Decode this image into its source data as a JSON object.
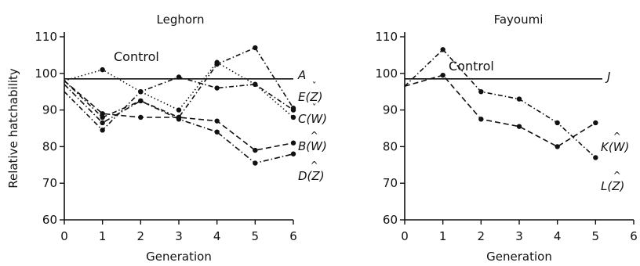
{
  "chart_data": [
    {
      "type": "line",
      "title": "Leghorn",
      "xlabel": "Generation",
      "ylabel": "Relative hatchability",
      "xlim": [
        0,
        6
      ],
      "ylim": [
        60,
        110
      ],
      "x_ticks": [
        "0",
        "1",
        "2",
        "3",
        "4",
        "5",
        "6"
      ],
      "y_ticks": [
        "60",
        "70",
        "80",
        "90",
        "100",
        "110"
      ],
      "grid": false,
      "annotation": "Control",
      "control": {
        "label": "A",
        "value": 98.5
      },
      "series": [
        {
          "label": "E(Z)",
          "base": "E(",
          "var": "Z",
          "accent": "ˇ",
          "dash": "6,3,1.5,3",
          "x": [
            0,
            1,
            2,
            3,
            4,
            5,
            6
          ],
          "y": [
            98,
            88,
            92.5,
            88,
            102.5,
            107,
            90.5
          ]
        },
        {
          "label": "C(W)",
          "base": "C(",
          "var": "W",
          "accent": "ˇ",
          "dash": "1.5,3",
          "x": [
            0,
            1,
            2,
            3,
            4,
            5,
            6
          ],
          "y": [
            98,
            101,
            95,
            90,
            103,
            97,
            88
          ]
        },
        {
          "label": "B(W)",
          "base": "B(",
          "var": "W",
          "accent": "^",
          "dash": "7,4",
          "x": [
            0,
            1,
            2,
            3,
            4,
            5,
            6
          ],
          "y": [
            98,
            89,
            88,
            88,
            87,
            79,
            81
          ]
        },
        {
          "label": "D(Z)",
          "base": "D(",
          "var": "Z",
          "accent": "^",
          "dash": "7,3,1.5,3",
          "x": [
            0,
            1,
            2,
            3,
            4,
            5,
            6
          ],
          "y": [
            97,
            86.5,
            92.5,
            87.5,
            84,
            75.5,
            78
          ]
        },
        {
          "label": "",
          "base": "",
          "var": "",
          "accent": "",
          "dash": "6,3,1.5,3",
          "x": [
            0,
            1,
            2,
            3,
            4,
            5,
            6
          ],
          "y": [
            95,
            84.5,
            95,
            99,
            96,
            97,
            90
          ]
        }
      ]
    },
    {
      "type": "line",
      "title": "Fayoumi",
      "xlabel": "Generation",
      "ylabel": "",
      "xlim": [
        0,
        6
      ],
      "ylim": [
        60,
        110
      ],
      "x_ticks": [
        "0",
        "1",
        "2",
        "3",
        "4",
        "5",
        "6"
      ],
      "y_ticks": [
        "60",
        "70",
        "80",
        "90",
        "100",
        "110"
      ],
      "grid": false,
      "annotation": "Control",
      "control": {
        "label": "J",
        "value": 98.5
      },
      "series": [
        {
          "label": "K(W)",
          "base": "K(",
          "var": "W",
          "accent": "^",
          "dash": "6,3,1.5,3",
          "x": [
            0,
            1,
            2,
            3,
            4,
            5
          ],
          "y": [
            96.5,
            106.5,
            95,
            93,
            86.5,
            77
          ]
        },
        {
          "label": "L(Z)",
          "base": "L(",
          "var": "Z",
          "accent": "^",
          "dash": "7,4",
          "x": [
            0,
            1,
            2,
            3,
            4,
            5
          ],
          "y": [
            96.5,
            99.5,
            87.5,
            85.5,
            80,
            86.5
          ]
        }
      ]
    }
  ]
}
